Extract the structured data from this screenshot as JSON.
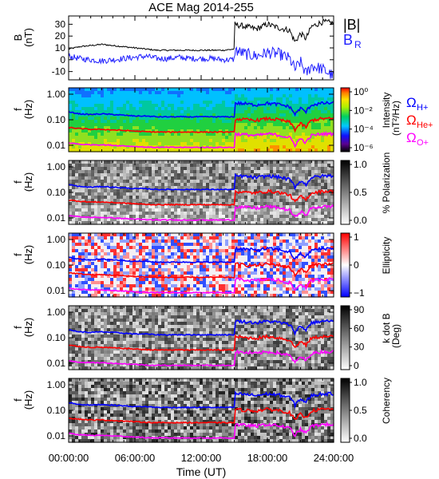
{
  "title": "ACE Mag 2014-255",
  "xlabel": "Time (UT)",
  "time_ticks": [
    "00:00:00",
    "06:00:00",
    "12:00:00",
    "18:00:00",
    "24:00:00"
  ],
  "freq_ticks": [
    "1.00",
    "0.10",
    "0.01"
  ],
  "colors": {
    "B_total": "#000000",
    "B_R": "#2020ff",
    "H_plus": "#0000ff",
    "He_plus": "#ff0000",
    "O_plus": "#ff00ff"
  },
  "chart_data": [
    {
      "type": "line",
      "ylabel": "B",
      "yunit": "(nT)",
      "yticks": [
        "30",
        "20",
        "10",
        "0",
        "-10"
      ],
      "ylim": [
        -17,
        37
      ],
      "xlim": [
        0,
        24
      ],
      "legend": [
        "|B|",
        "B"
      ],
      "legend_sub": [
        "",
        "R"
      ],
      "series": [
        {
          "name": "|B|",
          "x": [
            0,
            1,
            2,
            3,
            4,
            5,
            6,
            7,
            8,
            9,
            10,
            11,
            12,
            13,
            14,
            15,
            15.01,
            16,
            17,
            18,
            19,
            20,
            20.5,
            21,
            21.5,
            22,
            23,
            24
          ],
          "y": [
            9,
            11,
            12,
            13,
            12,
            11,
            10,
            9,
            8,
            8,
            8,
            8,
            8,
            8,
            8,
            9,
            30,
            28,
            26,
            30,
            27,
            25,
            15,
            22,
            18,
            28,
            32,
            31
          ]
        },
        {
          "name": "B_R",
          "x": [
            0,
            1,
            2,
            3,
            4,
            5,
            6,
            7,
            8,
            9,
            10,
            11,
            12,
            13,
            14,
            15,
            15.01,
            16,
            17,
            18,
            19,
            20,
            20.5,
            21,
            21.5,
            22,
            23,
            24
          ],
          "y": [
            3,
            1,
            0,
            -1,
            0,
            1,
            2,
            3,
            1,
            1,
            2,
            1,
            1,
            1,
            0,
            0,
            8,
            5,
            3,
            6,
            5,
            1,
            -8,
            -2,
            -12,
            -5,
            -8,
            -14
          ]
        }
      ]
    },
    {
      "type": "heatmap",
      "ylabel": "f",
      "yunit": "(Hz)",
      "ylim": [
        0.004,
        1.3
      ],
      "colorbar_label": "Intensity",
      "colorbar_unit": "(nT²/Hz)",
      "colorbar_ticks": [
        "10⁰",
        "10⁻²",
        "10⁻⁴",
        "10⁻⁶"
      ],
      "overlay_lines": true
    },
    {
      "type": "heatmap",
      "ylabel": "f",
      "yunit": "(Hz)",
      "colorbar_label": "% Polarization",
      "colorbar_ticks": [
        "1.0",
        "0.5",
        "0.0"
      ],
      "overlay_lines": true
    },
    {
      "type": "heatmap",
      "ylabel": "f",
      "yunit": "(Hz)",
      "colorbar_label": "Ellipticity",
      "colorbar_ticks": [
        "1",
        "0",
        "−1"
      ],
      "overlay_lines": true
    },
    {
      "type": "heatmap",
      "ylabel": "f",
      "yunit": "(Hz)",
      "colorbar_label": "k dot B",
      "colorbar_unit": "(Deg)",
      "colorbar_ticks": [
        "90",
        "60",
        "30",
        "0"
      ],
      "overlay_lines": true
    },
    {
      "type": "heatmap",
      "ylabel": "f",
      "yunit": "(Hz)",
      "colorbar_label": "Coherency",
      "colorbar_ticks": [
        "1.0",
        "0.5",
        "0.0"
      ],
      "overlay_lines": true
    }
  ],
  "gyrofrequencies": {
    "legend": [
      {
        "symbol": "Ω",
        "sub": "H+"
      },
      {
        "symbol": "Ω",
        "sub": "He+"
      },
      {
        "symbol": "Ω",
        "sub": "O+"
      }
    ],
    "series": [
      {
        "name": "ΩH+",
        "x": [
          0,
          1,
          2,
          3,
          4,
          5,
          6,
          7,
          8,
          9,
          10,
          11,
          12,
          13,
          14,
          15,
          15.01,
          16,
          17,
          18,
          19,
          20,
          20.5,
          21,
          21.5,
          22,
          23,
          24
        ],
        "y": [
          0.2,
          0.17,
          0.16,
          0.17,
          0.16,
          0.15,
          0.14,
          0.14,
          0.13,
          0.13,
          0.13,
          0.13,
          0.13,
          0.13,
          0.13,
          0.13,
          0.45,
          0.42,
          0.38,
          0.44,
          0.4,
          0.32,
          0.16,
          0.28,
          0.2,
          0.38,
          0.44,
          0.45
        ]
      },
      {
        "name": "ΩHe+",
        "x": [
          0,
          1,
          2,
          3,
          4,
          5,
          6,
          7,
          8,
          9,
          10,
          11,
          12,
          13,
          14,
          15,
          15.01,
          16,
          17,
          18,
          19,
          20,
          20.5,
          21,
          21.5,
          22,
          23,
          24
        ],
        "y": [
          0.05,
          0.045,
          0.042,
          0.042,
          0.04,
          0.038,
          0.036,
          0.034,
          0.033,
          0.033,
          0.033,
          0.033,
          0.033,
          0.033,
          0.033,
          0.033,
          0.11,
          0.1,
          0.095,
          0.11,
          0.1,
          0.08,
          0.04,
          0.07,
          0.05,
          0.095,
          0.11,
          0.11
        ]
      },
      {
        "name": "ΩO+",
        "x": [
          0,
          1,
          2,
          3,
          4,
          5,
          6,
          7,
          8,
          9,
          10,
          11,
          12,
          13,
          14,
          15,
          15.01,
          16,
          17,
          18,
          19,
          20,
          20.5,
          21,
          21.5,
          22,
          23,
          24
        ],
        "y": [
          0.0125,
          0.011,
          0.0105,
          0.0105,
          0.01,
          0.0095,
          0.009,
          0.0085,
          0.0083,
          0.0083,
          0.0083,
          0.0083,
          0.0083,
          0.0083,
          0.0083,
          0.0083,
          0.028,
          0.026,
          0.024,
          0.028,
          0.025,
          0.02,
          0.01,
          0.018,
          0.0125,
          0.024,
          0.028,
          0.028
        ]
      }
    ]
  }
}
